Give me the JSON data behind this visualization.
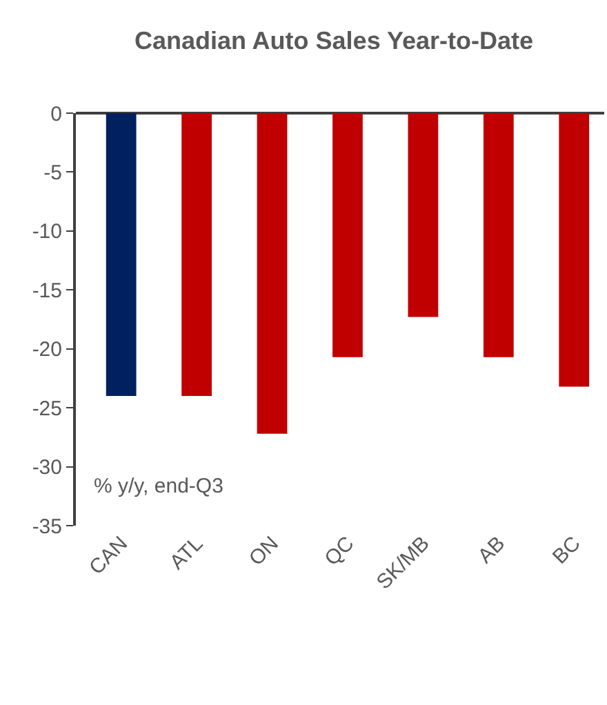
{
  "chart_data": {
    "type": "bar",
    "title": "Canadian Auto Sales Year-to-Date",
    "categories": [
      "CAN",
      "ATL",
      "ON",
      "QC",
      "SK/MB",
      "AB",
      "BC"
    ],
    "values": [
      -24,
      -24,
      -27.2,
      -20.7,
      -17.3,
      -20.7,
      -23.2
    ],
    "colors": [
      "#002060",
      "#c00000",
      "#c00000",
      "#c00000",
      "#c00000",
      "#c00000",
      "#c00000"
    ],
    "ylim": [
      -35,
      0
    ],
    "yticks": [
      0,
      -5,
      -10,
      -15,
      -20,
      -25,
      -30,
      -35
    ],
    "annotations": [
      "% y/y, end-Q3"
    ]
  }
}
